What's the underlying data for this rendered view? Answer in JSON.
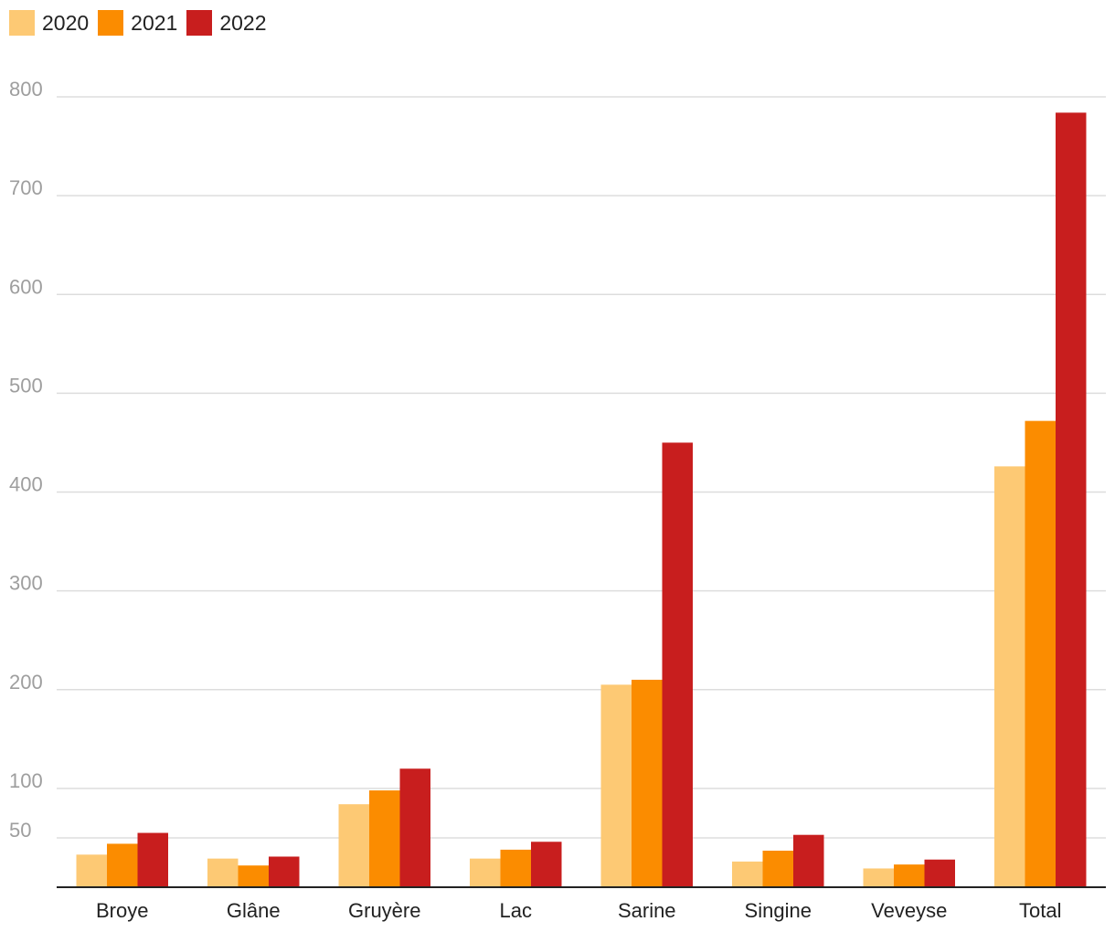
{
  "chart_data": {
    "type": "bar",
    "title": "",
    "xlabel": "",
    "ylabel": "",
    "categories": [
      "Broye",
      "Glâne",
      "Gruyère",
      "Lac",
      "Sarine",
      "Singine",
      "Veveyse",
      "Total"
    ],
    "series": [
      {
        "name": "2020",
        "color": "#fdc974",
        "values": [
          33,
          29,
          84,
          29,
          205,
          26,
          19,
          426
        ]
      },
      {
        "name": "2021",
        "color": "#fb8c00",
        "values": [
          44,
          22,
          98,
          38,
          210,
          37,
          23,
          472
        ]
      },
      {
        "name": "2022",
        "color": "#c81e1e",
        "values": [
          55,
          31,
          120,
          46,
          450,
          53,
          28,
          784
        ]
      }
    ],
    "y_ticks": [
      50,
      100,
      200,
      300,
      400,
      500,
      600,
      700,
      800
    ],
    "ylim": [
      0,
      800
    ],
    "grid": true,
    "legend_position": "top-left"
  }
}
